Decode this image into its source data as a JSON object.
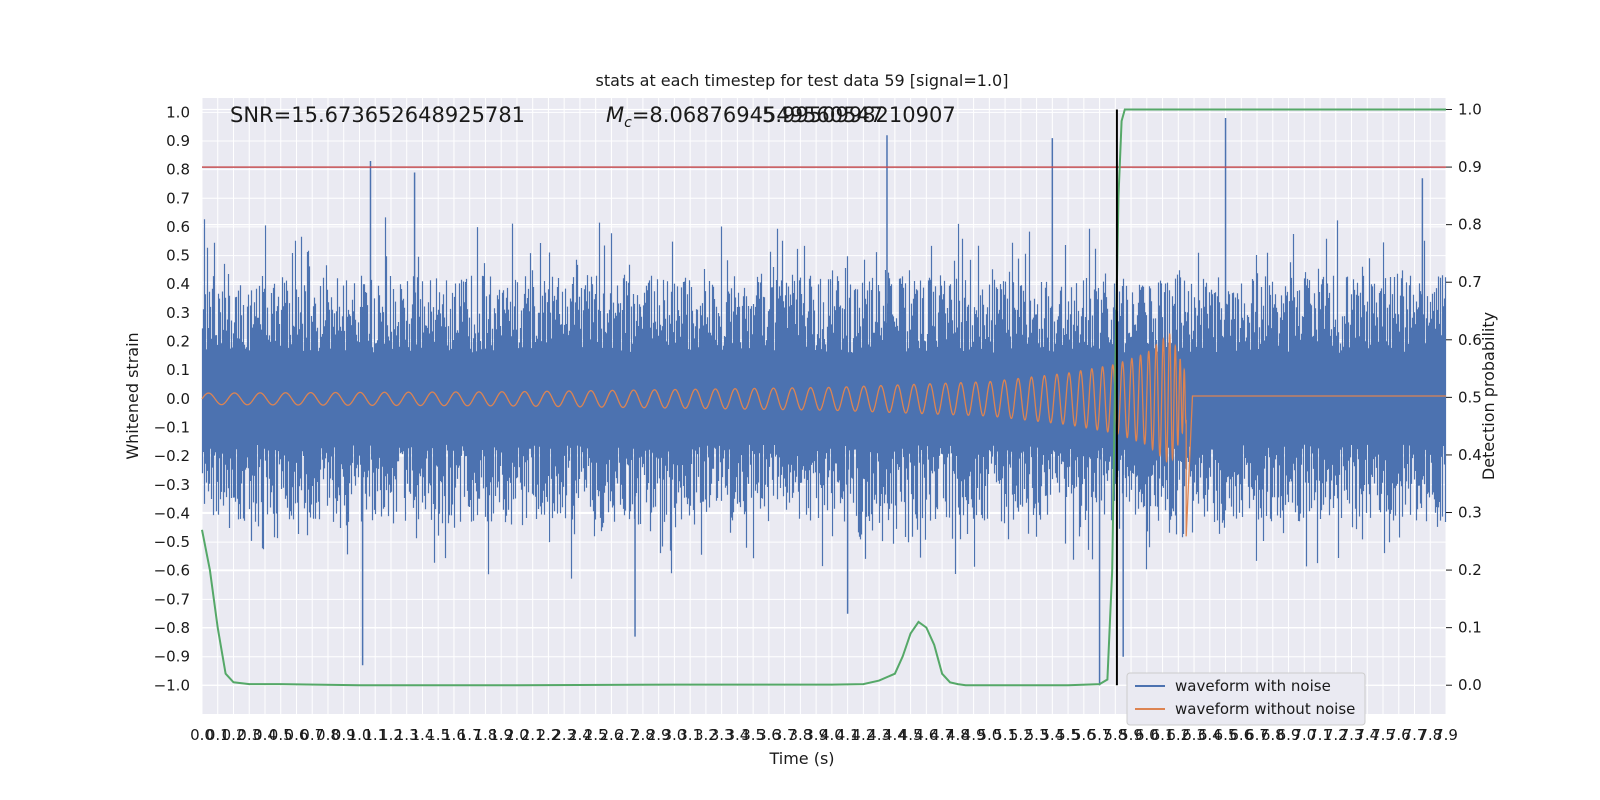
{
  "chart_data": {
    "type": "line",
    "title": "stats at each timestep for test data 59 [signal=1.0]",
    "xlabel": "Time (s)",
    "ylabel": "Whitened strain",
    "y2label": "Detection probability",
    "xlim": [
      0.0,
      7.9
    ],
    "ylim": [
      -1.1,
      1.05
    ],
    "y2lim": [
      -0.05,
      1.02
    ],
    "x_tick_labels": [
      "0.0",
      "0.1",
      "0.2",
      "0.3",
      "0.4",
      "0.5",
      "0.6",
      "0.7",
      "0.8",
      "0.9",
      "1.0",
      "1.1",
      "1.2",
      "1.3",
      "1.4",
      "1.5",
      "1.6",
      "1.7",
      "1.8",
      "1.9",
      "2.0",
      "2.1",
      "2.2",
      "2.3",
      "2.4",
      "2.5",
      "2.6",
      "2.7",
      "2.8",
      "2.9",
      "3.0",
      "3.1",
      "3.2",
      "3.3",
      "3.4",
      "3.5",
      "3.6",
      "3.7",
      "3.8",
      "3.9",
      "4.0",
      "4.1",
      "4.2",
      "4.3",
      "4.4",
      "4.5",
      "4.6",
      "4.7",
      "4.8",
      "4.9",
      "5.0",
      "5.1",
      "5.2",
      "5.3",
      "5.4",
      "5.5",
      "5.6",
      "5.7",
      "5.8",
      "5.9",
      "6.0",
      "6.1",
      "6.2",
      "6.3",
      "6.4",
      "6.5",
      "6.6",
      "6.7",
      "6.8",
      "6.9",
      "7.0",
      "7.1",
      "7.2",
      "7.3",
      "7.4",
      "7.5",
      "7.6",
      "7.7",
      "7.8",
      "7.9"
    ],
    "y_tick_labels": [
      "1.0",
      "0.9",
      "0.8",
      "0.7",
      "0.6",
      "0.5",
      "0.4",
      "0.3",
      "0.2",
      "0.1",
      "0.0",
      "−0.1",
      "−0.2",
      "−0.3",
      "−0.4",
      "−0.5",
      "−0.6",
      "−0.7",
      "−0.8",
      "−0.9",
      "−1.0"
    ],
    "y2_tick_labels": [
      "1.0",
      "0.9",
      "0.8",
      "0.7",
      "0.6",
      "0.5",
      "0.4",
      "0.3",
      "0.2",
      "0.1",
      "0.0"
    ],
    "annotations": {
      "snr": "SNR=15.673652648925781",
      "mc_prefix": "M",
      "mc_sub": "c",
      "mc_value": "=8.0687694549560547",
      "overlap": "5.9950998210907"
    },
    "threshold_line": {
      "y2": 0.9,
      "color": "#c44e52"
    },
    "vertical_marker": {
      "x": 5.81,
      "color": "#000000"
    },
    "series": [
      {
        "name": "waveform with noise",
        "color": "#4c72b0",
        "axis": "left",
        "kind": "noise",
        "typical_peak": 0.45,
        "notable_spikes": [
          {
            "x": 1.07,
            "y": 0.83
          },
          {
            "x": 1.35,
            "y": 0.79
          },
          {
            "x": 4.35,
            "y": 0.92
          },
          {
            "x": 5.4,
            "y": 0.91
          },
          {
            "x": 6.5,
            "y": 0.98
          },
          {
            "x": 7.75,
            "y": 0.77
          },
          {
            "x": 1.02,
            "y": -0.93
          },
          {
            "x": 2.75,
            "y": -0.83
          },
          {
            "x": 5.7,
            "y": -1.0
          },
          {
            "x": 5.85,
            "y": -0.9
          },
          {
            "x": 4.1,
            "y": -0.75
          }
        ]
      },
      {
        "name": "waveform without noise",
        "color": "#dd8452",
        "axis": "left",
        "kind": "chirp",
        "merger_time": 6.25,
        "points": [
          {
            "x": 0.0,
            "amp": 0.02
          },
          {
            "x": 2.0,
            "amp": 0.025
          },
          {
            "x": 4.0,
            "amp": 0.04
          },
          {
            "x": 5.0,
            "amp": 0.06
          },
          {
            "x": 5.5,
            "amp": 0.09
          },
          {
            "x": 5.8,
            "amp": 0.12
          },
          {
            "x": 6.0,
            "amp": 0.16
          },
          {
            "x": 6.15,
            "amp": 0.23
          },
          {
            "x": 6.25,
            "amp": 0.35
          },
          {
            "x": 6.26,
            "amp": -0.48
          },
          {
            "x": 6.3,
            "amp": 0.01
          },
          {
            "x": 7.9,
            "amp": 0.01
          }
        ]
      },
      {
        "name": "detection probability",
        "color": "#55a868",
        "axis": "right",
        "kind": "line",
        "x": [
          0.0,
          0.05,
          0.1,
          0.15,
          0.2,
          0.3,
          0.5,
          1.0,
          2.0,
          3.0,
          4.0,
          4.2,
          4.3,
          4.4,
          4.45,
          4.5,
          4.55,
          4.6,
          4.65,
          4.7,
          4.75,
          4.8,
          4.85,
          4.9,
          5.0,
          5.5,
          5.7,
          5.75,
          5.78,
          5.8,
          5.82,
          5.84,
          5.86,
          5.9,
          6.0,
          7.9
        ],
        "y": [
          0.27,
          0.2,
          0.1,
          0.02,
          0.005,
          0.002,
          0.002,
          0.0,
          0.0,
          0.001,
          0.001,
          0.002,
          0.008,
          0.02,
          0.05,
          0.09,
          0.11,
          0.1,
          0.07,
          0.02,
          0.005,
          0.002,
          0.0,
          0.0,
          0.0,
          0.0,
          0.002,
          0.01,
          0.2,
          0.55,
          0.85,
          0.98,
          1.0,
          1.0,
          1.0,
          1.0
        ]
      }
    ],
    "legend": {
      "placement": "lower-right",
      "entries": [
        "waveform with noise",
        "waveform without noise"
      ]
    },
    "grid": true,
    "background_color": "#eaeaf2"
  }
}
